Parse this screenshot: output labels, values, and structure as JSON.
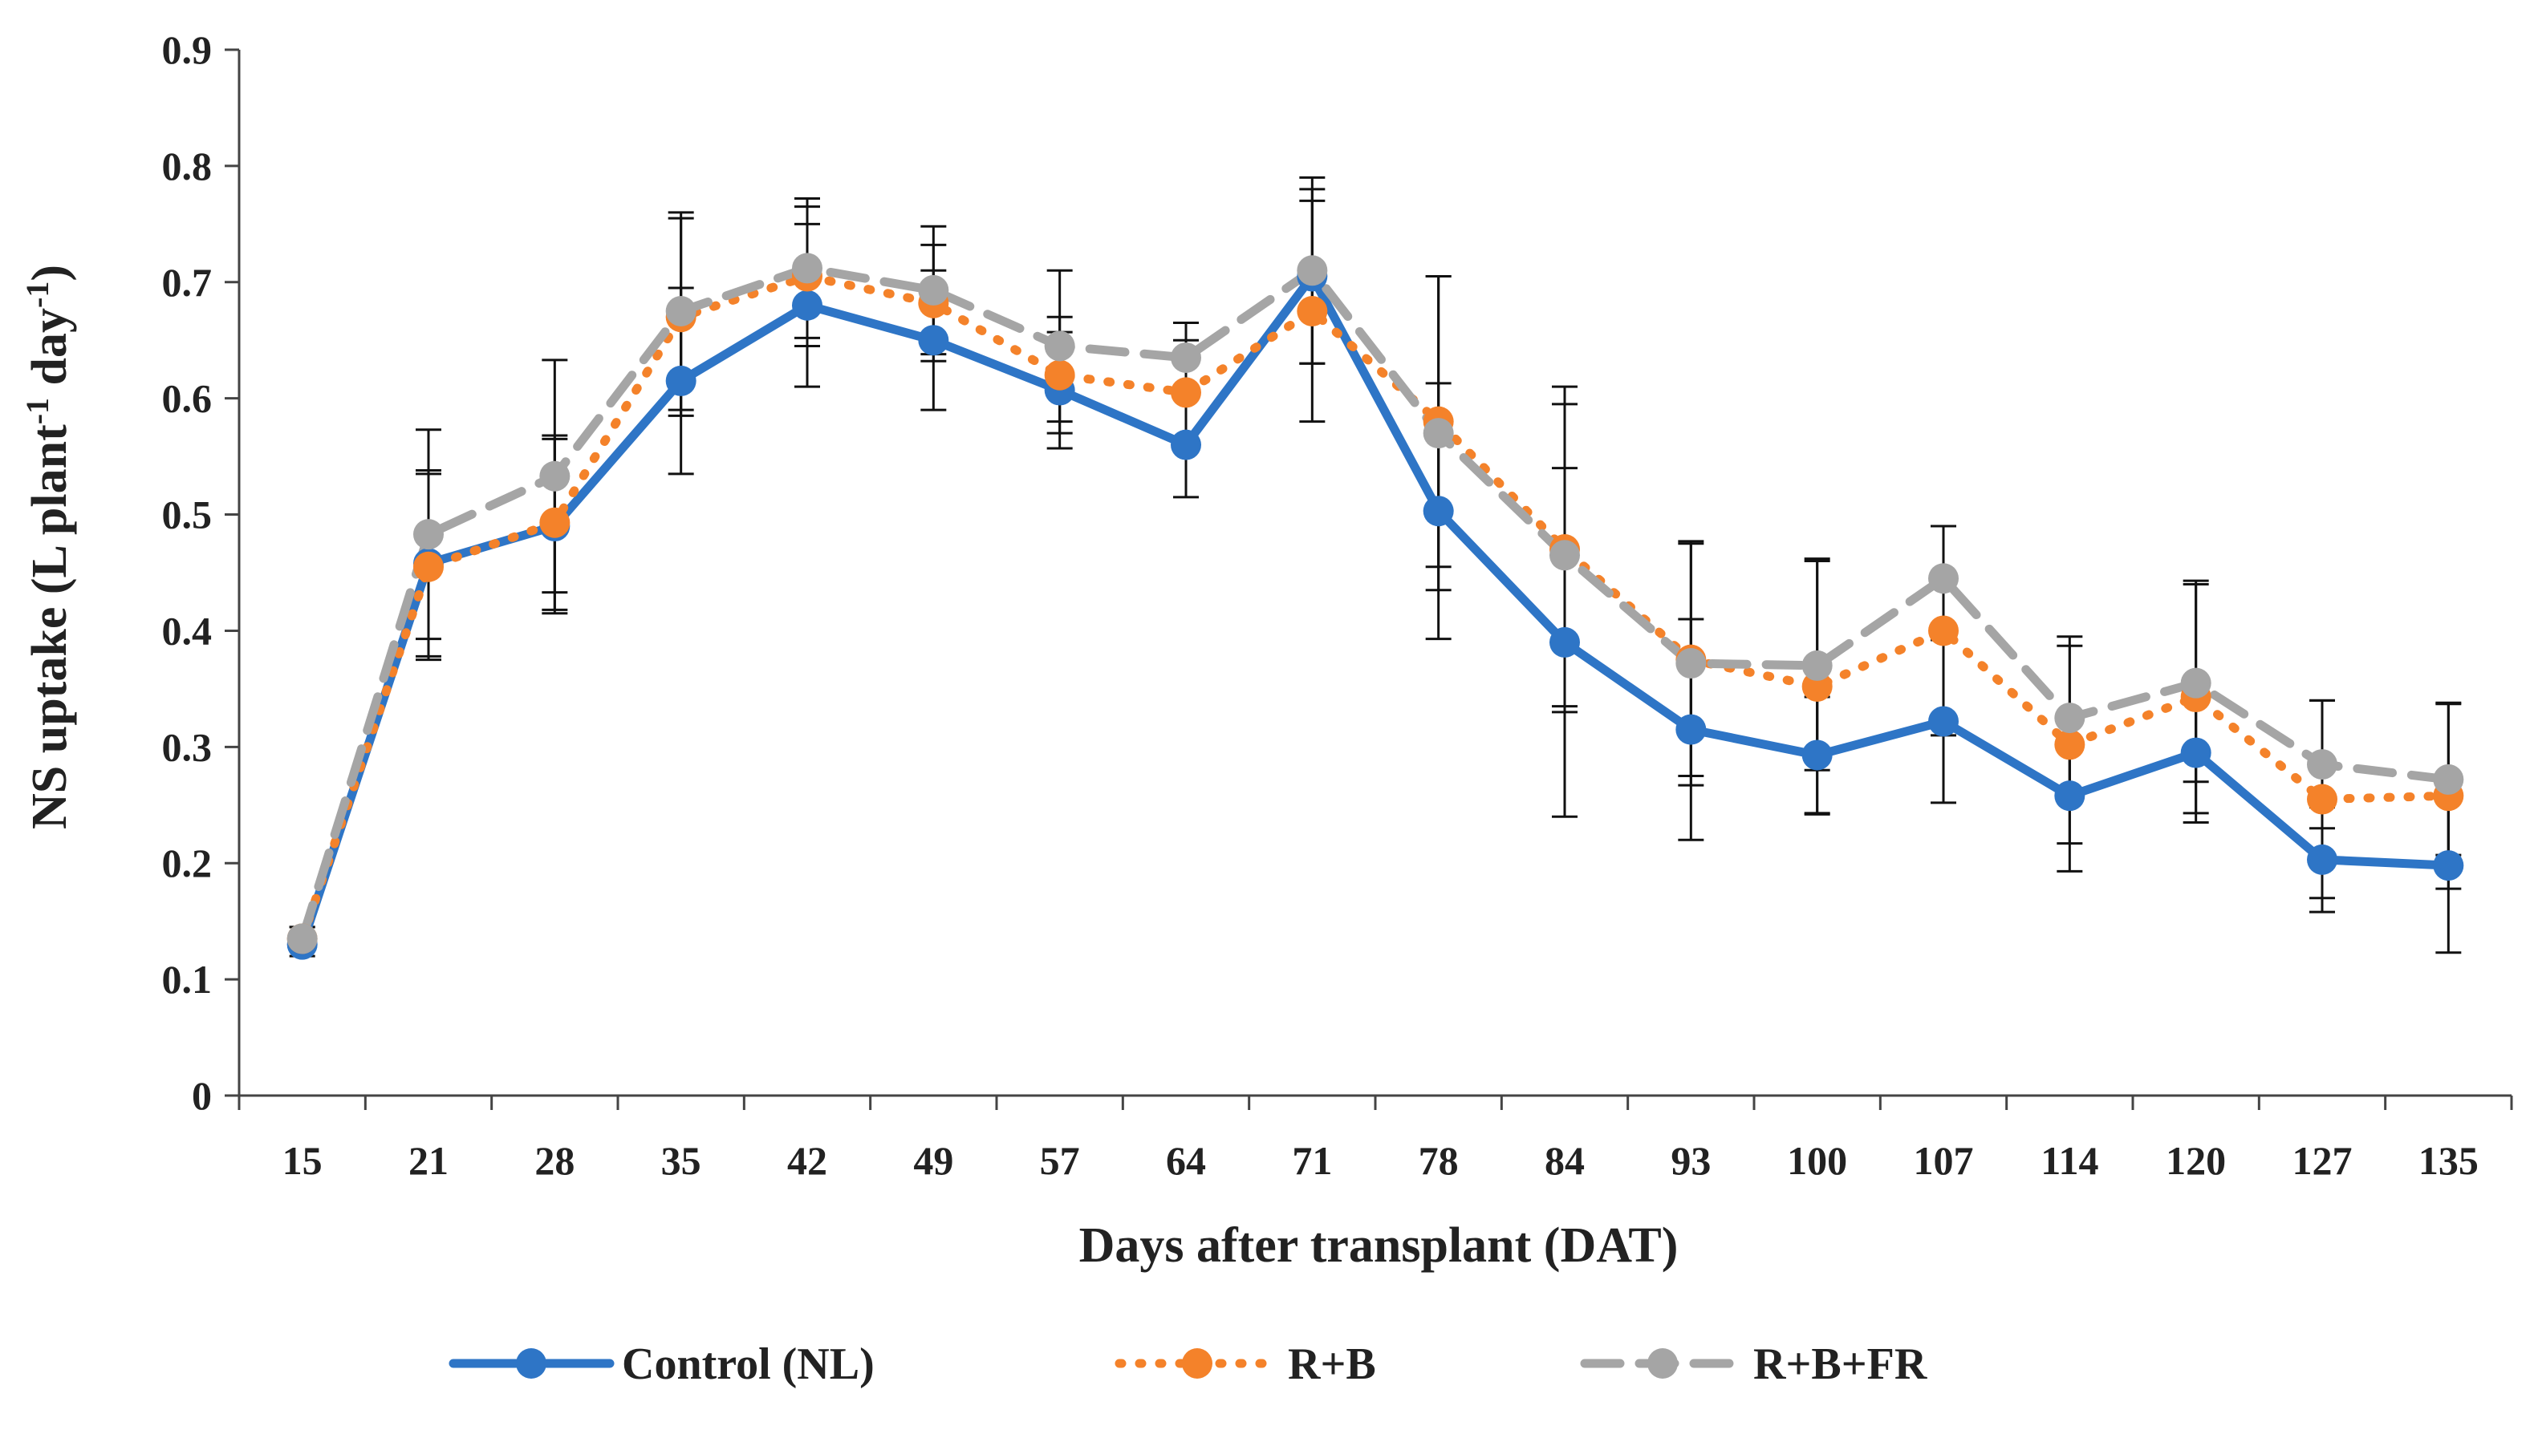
{
  "chart_data": {
    "type": "line",
    "title": "",
    "xlabel": "Days after transplant (DAT)",
    "ylabel_main": "NS uptake (L plant",
    "ylabel_sup1": "-1",
    "ylabel_mid": " day",
    "ylabel_sup2": "-1",
    "ylabel_end": ")",
    "ylim": [
      0,
      0.9
    ],
    "yticks": [
      "0",
      "0.1",
      "0.2",
      "0.3",
      "0.4",
      "0.5",
      "0.6",
      "0.7",
      "0.8",
      "0.9"
    ],
    "categories": [
      "15",
      "21",
      "28",
      "35",
      "42",
      "49",
      "57",
      "64",
      "71",
      "78",
      "84",
      "93",
      "100",
      "107",
      "114",
      "120",
      "127",
      "135"
    ],
    "legend_position": "bottom",
    "series": [
      {
        "name": "Control (NL)",
        "color": "#2E75C6",
        "style": "solid",
        "values": [
          0.13,
          0.458,
          0.49,
          0.615,
          0.68,
          0.65,
          0.607,
          0.56,
          0.705,
          0.503,
          0.39,
          0.315,
          0.293,
          0.322,
          0.258,
          0.295,
          0.203,
          0.198
        ],
        "errors": [
          0.01,
          0.08,
          0.075,
          0.08,
          0.07,
          0.06,
          0.05,
          0.045,
          0.075,
          0.11,
          0.15,
          0.095,
          0.05,
          0.07,
          0.065,
          0.06,
          0.045,
          0.075
        ]
      },
      {
        "name": "R+B",
        "color": "#F4822A",
        "style": "dotted",
        "values": [
          0.135,
          0.455,
          0.493,
          0.67,
          0.705,
          0.682,
          0.62,
          0.605,
          0.675,
          0.58,
          0.47,
          0.375,
          0.352,
          0.4,
          0.302,
          0.343,
          0.255,
          0.258
        ],
        "errors": [
          0.01,
          0.08,
          0.075,
          0.085,
          0.06,
          0.05,
          0.05,
          0.045,
          0.095,
          0.125,
          0.14,
          0.1,
          0.11,
          0.09,
          0.085,
          0.1,
          0.085,
          0.08
        ]
      },
      {
        "name": "R+B+FR",
        "color": "#A5A5A5",
        "style": "dashed",
        "values": [
          0.135,
          0.483,
          0.533,
          0.675,
          0.712,
          0.693,
          0.645,
          0.635,
          0.71,
          0.57,
          0.465,
          0.372,
          0.37,
          0.445,
          0.325,
          0.355,
          0.285,
          0.272
        ],
        "errors": [
          0.01,
          0.09,
          0.1,
          0.085,
          0.06,
          0.055,
          0.065,
          0.03,
          0.08,
          0.135,
          0.13,
          0.105,
          0.09,
          0.045,
          0.07,
          0.085,
          0.055,
          0.065
        ]
      }
    ]
  }
}
